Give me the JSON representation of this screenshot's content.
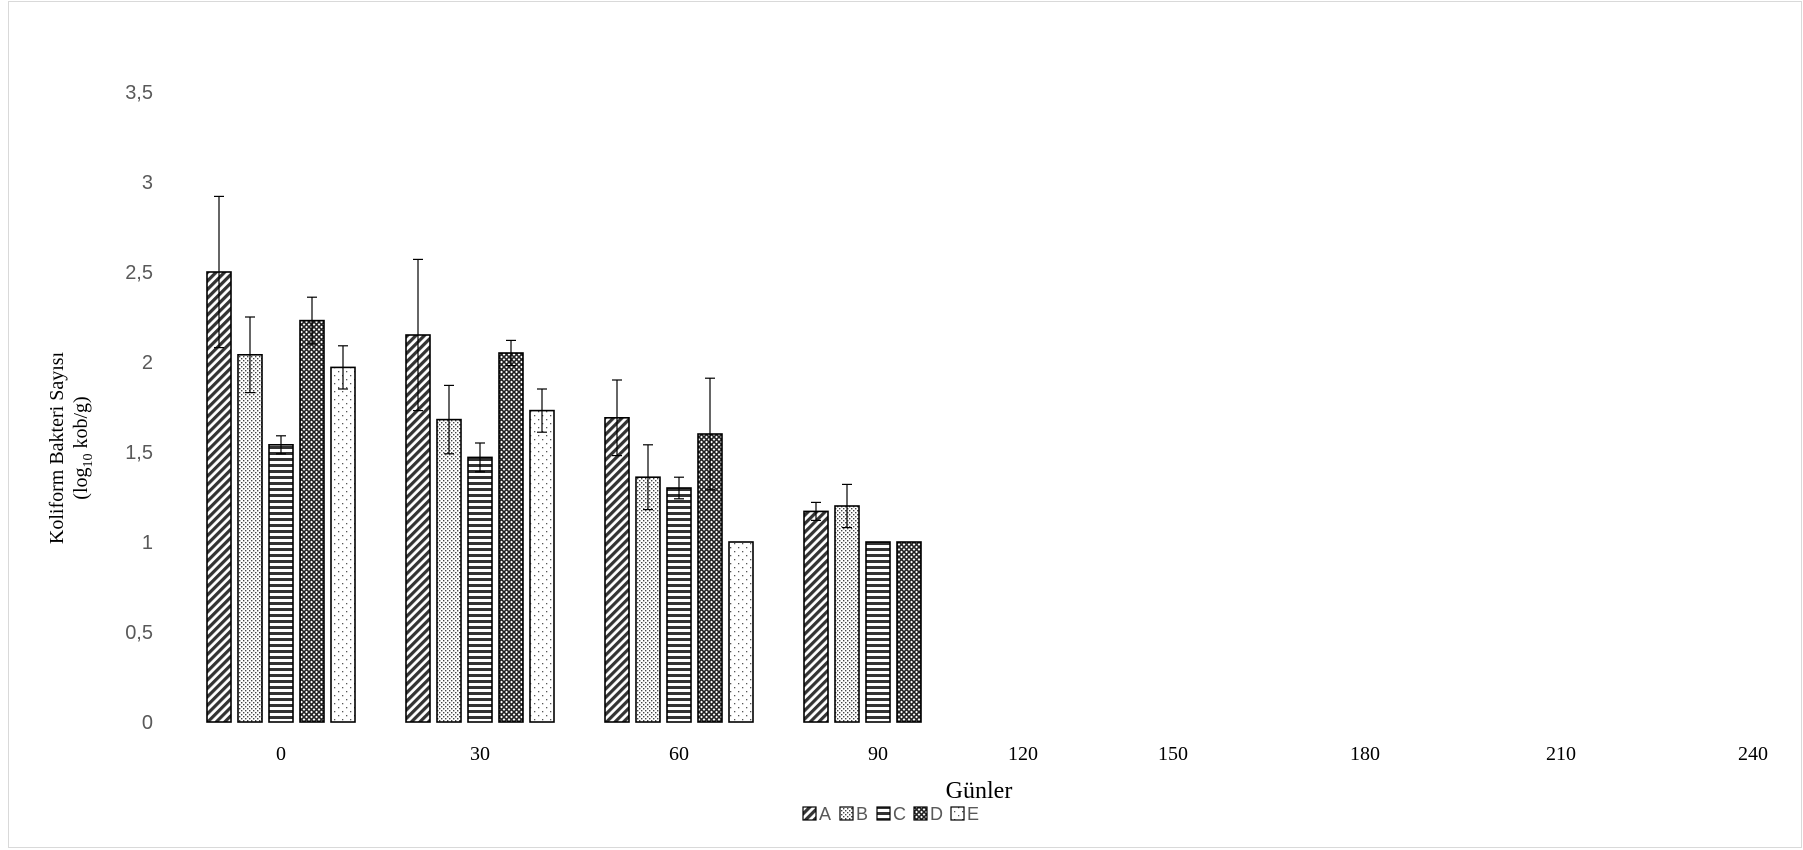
{
  "chart_data": {
    "type": "bar",
    "title": "",
    "xlabel": "Günler",
    "ylabel": "Koliform Bakteri Sayısı",
    "ylabel_unit_prefix": "(log",
    "ylabel_unit_sub": "10",
    "ylabel_unit_suffix": " kob/g)",
    "ylim": [
      0,
      3.5
    ],
    "y_ticks": [
      "0",
      "0,5",
      "1",
      "1,5",
      "2",
      "2,5",
      "3",
      "3,5"
    ],
    "y_tick_values": [
      0,
      0.5,
      1,
      1.5,
      2,
      2.5,
      3,
      3.5
    ],
    "categories": [
      "0",
      "30",
      "60",
      "90",
      "120",
      "150",
      "180",
      "210",
      "240"
    ],
    "grid": false,
    "legend_position": "bottom",
    "series": [
      {
        "name": "A",
        "pattern": "diag",
        "values": [
          2.5,
          2.15,
          1.69,
          1.17,
          null,
          null,
          null,
          null,
          null
        ],
        "errors": [
          0.42,
          0.42,
          0.21,
          0.05,
          null,
          null,
          null,
          null,
          null
        ]
      },
      {
        "name": "B",
        "pattern": "dots",
        "values": [
          2.04,
          1.68,
          1.36,
          1.2,
          null,
          null,
          null,
          null,
          null
        ],
        "errors": [
          0.21,
          0.19,
          0.18,
          0.12,
          null,
          null,
          null,
          null,
          null
        ]
      },
      {
        "name": "C",
        "pattern": "hlines",
        "values": [
          1.54,
          1.47,
          1.3,
          1.0,
          null,
          null,
          null,
          null,
          null
        ],
        "errors": [
          0.05,
          0.08,
          0.06,
          null,
          null,
          null,
          null,
          null,
          null
        ]
      },
      {
        "name": "D",
        "pattern": "cross",
        "values": [
          2.23,
          2.05,
          1.6,
          1.0,
          null,
          null,
          null,
          null,
          null
        ],
        "errors": [
          0.13,
          0.07,
          0.31,
          null,
          null,
          null,
          null,
          null,
          null
        ]
      },
      {
        "name": "E",
        "pattern": "sparse",
        "values": [
          1.97,
          1.73,
          1.0,
          null,
          null,
          null,
          null,
          null,
          null
        ],
        "errors": [
          0.12,
          0.12,
          null,
          null,
          null,
          null,
          null,
          null,
          null
        ]
      }
    ]
  }
}
